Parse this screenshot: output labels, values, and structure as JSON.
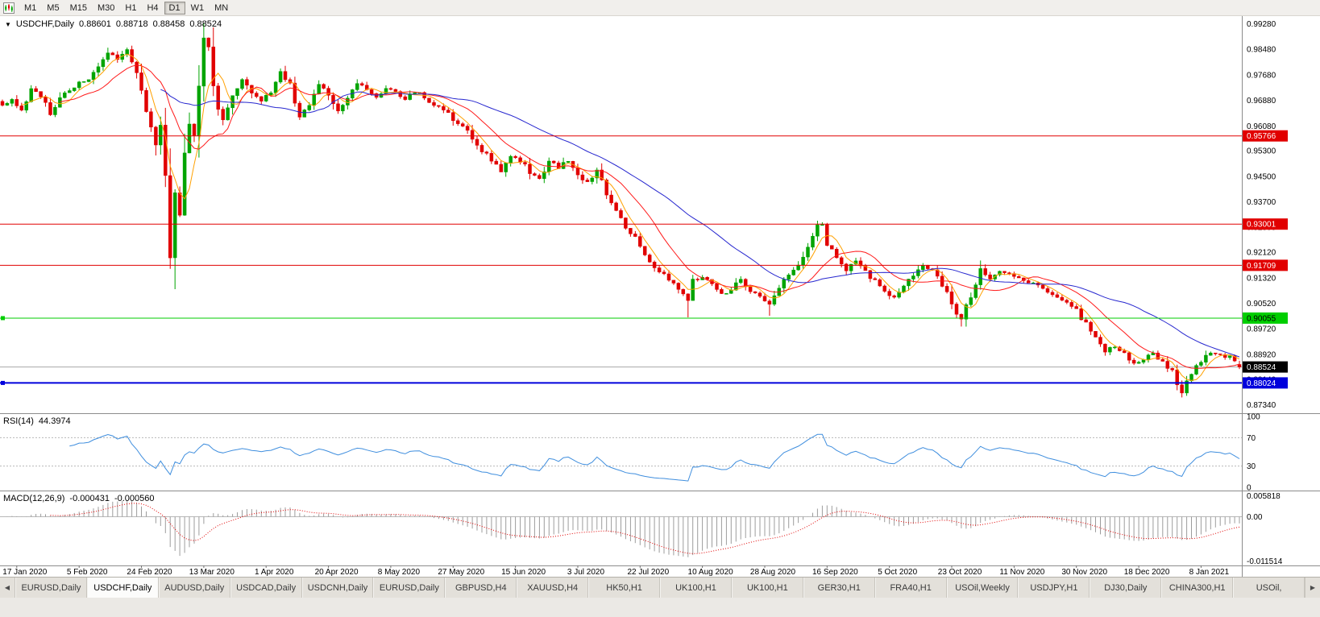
{
  "toolbar": {
    "timeframes": [
      {
        "label": "M1",
        "active": false
      },
      {
        "label": "M5",
        "active": false
      },
      {
        "label": "M15",
        "active": false
      },
      {
        "label": "M30",
        "active": false
      },
      {
        "label": "H1",
        "active": false
      },
      {
        "label": "H4",
        "active": false
      },
      {
        "label": "D1",
        "active": true
      },
      {
        "label": "W1",
        "active": false
      },
      {
        "label": "MN",
        "active": false
      }
    ]
  },
  "chart": {
    "title": {
      "arrow": "▼",
      "symbol": "USDCHF,Daily",
      "open": "0.88601",
      "high": "0.88718",
      "low": "0.88458",
      "close": "0.88524"
    },
    "rsi": {
      "name": "RSI(14)",
      "value": "44.3974"
    },
    "macd": {
      "name": "MACD(12,26,9)",
      "value1": "-0.000431",
      "value2": "-0.000560"
    }
  },
  "chart_data": {
    "type": "candlestick",
    "symbol": "USDCHF",
    "period": "Daily",
    "bars": 259,
    "seed": 20,
    "price_axis": [
      "0.99280",
      "0.98480",
      "0.97680",
      "0.96880",
      "0.96080",
      "0.95300",
      "0.94500",
      "0.93700",
      "0.92900",
      "0.92120",
      "0.91320",
      "0.90520",
      "0.89720",
      "0.88920",
      "0.88140",
      "0.87340"
    ],
    "price_range": {
      "min": 0.871,
      "max": 0.9952
    },
    "x_labels": [
      "17 Jan 2020",
      "5 Feb 2020",
      "24 Feb 2020",
      "13 Mar 2020",
      "1 Apr 2020",
      "20 Apr 2020",
      "8 May 2020",
      "27 May 2020",
      "15 Jun 2020",
      "3 Jul 2020",
      "22 Jul 2020",
      "10 Aug 2020",
      "28 Aug 2020",
      "16 Sep 2020",
      "5 Oct 2020",
      "23 Oct 2020",
      "11 Nov 2020",
      "30 Nov 2020",
      "18 Dec 2020",
      "8 Jan 2021"
    ],
    "x_label_first_bar": 3,
    "x_label_step": 13,
    "close_anchors": [
      [
        0,
        0.967
      ],
      [
        2,
        0.969
      ],
      [
        4,
        0.9658
      ],
      [
        6,
        0.9722
      ],
      [
        8,
        0.97
      ],
      [
        10,
        0.9645
      ],
      [
        12,
        0.97
      ],
      [
        14,
        0.9722
      ],
      [
        16,
        0.974
      ],
      [
        18,
        0.9758
      ],
      [
        20,
        0.98
      ],
      [
        22,
        0.9838
      ],
      [
        24,
        0.9812
      ],
      [
        26,
        0.9842
      ],
      [
        28,
        0.9782
      ],
      [
        30,
        0.966
      ],
      [
        31,
        0.9612
      ],
      [
        32,
        0.9548
      ],
      [
        33,
        0.9618
      ],
      [
        34,
        0.948
      ],
      [
        35,
        0.9205
      ],
      [
        36,
        0.9388
      ],
      [
        37,
        0.933
      ],
      [
        38,
        0.9505
      ],
      [
        39,
        0.9608
      ],
      [
        40,
        0.9565
      ],
      [
        41,
        0.973
      ],
      [
        42,
        0.988
      ],
      [
        43,
        0.9845
      ],
      [
        44,
        0.9745
      ],
      [
        45,
        0.9675
      ],
      [
        46,
        0.9628
      ],
      [
        48,
        0.9702
      ],
      [
        50,
        0.9758
      ],
      [
        52,
        0.9712
      ],
      [
        54,
        0.9682
      ],
      [
        56,
        0.9712
      ],
      [
        58,
        0.9775
      ],
      [
        60,
        0.9738
      ],
      [
        62,
        0.9642
      ],
      [
        64,
        0.9668
      ],
      [
        66,
        0.9738
      ],
      [
        68,
        0.97
      ],
      [
        70,
        0.9652
      ],
      [
        72,
        0.9688
      ],
      [
        74,
        0.9745
      ],
      [
        76,
        0.9725
      ],
      [
        78,
        0.97
      ],
      [
        80,
        0.9722
      ],
      [
        82,
        0.9712
      ],
      [
        84,
        0.9692
      ],
      [
        86,
        0.9715
      ],
      [
        88,
        0.97
      ],
      [
        90,
        0.9672
      ],
      [
        92,
        0.966
      ],
      [
        94,
        0.9625
      ],
      [
        96,
        0.9612
      ],
      [
        98,
        0.9565
      ],
      [
        100,
        0.953
      ],
      [
        102,
        0.95
      ],
      [
        104,
        0.9468
      ],
      [
        106,
        0.9515
      ],
      [
        108,
        0.95
      ],
      [
        110,
        0.9462
      ],
      [
        112,
        0.9445
      ],
      [
        114,
        0.95
      ],
      [
        116,
        0.9478
      ],
      [
        118,
        0.9502
      ],
      [
        120,
        0.9455
      ],
      [
        122,
        0.9432
      ],
      [
        124,
        0.9465
      ],
      [
        126,
        0.9395
      ],
      [
        128,
        0.9345
      ],
      [
        130,
        0.9295
      ],
      [
        132,
        0.9255
      ],
      [
        134,
        0.921
      ],
      [
        136,
        0.9162
      ],
      [
        138,
        0.9138
      ],
      [
        140,
        0.911
      ],
      [
        142,
        0.908
      ],
      [
        143,
        0.9065
      ],
      [
        144,
        0.912
      ],
      [
        146,
        0.9138
      ],
      [
        148,
        0.9115
      ],
      [
        150,
        0.9078
      ],
      [
        152,
        0.9098
      ],
      [
        154,
        0.9128
      ],
      [
        156,
        0.9092
      ],
      [
        158,
        0.9068
      ],
      [
        160,
        0.9045
      ],
      [
        162,
        0.9105
      ],
      [
        164,
        0.914
      ],
      [
        166,
        0.9172
      ],
      [
        168,
        0.9222
      ],
      [
        170,
        0.929
      ],
      [
        171,
        0.9298
      ],
      [
        172,
        0.924
      ],
      [
        174,
        0.9188
      ],
      [
        176,
        0.9158
      ],
      [
        178,
        0.9188
      ],
      [
        180,
        0.9152
      ],
      [
        182,
        0.912
      ],
      [
        184,
        0.9085
      ],
      [
        186,
        0.9068
      ],
      [
        188,
        0.9105
      ],
      [
        190,
        0.914
      ],
      [
        192,
        0.9168
      ],
      [
        194,
        0.9152
      ],
      [
        196,
        0.9108
      ],
      [
        198,
        0.9052
      ],
      [
        200,
        0.8998
      ],
      [
        202,
        0.9075
      ],
      [
        204,
        0.9165
      ],
      [
        206,
        0.9125
      ],
      [
        208,
        0.9148
      ],
      [
        210,
        0.9142
      ],
      [
        212,
        0.9128
      ],
      [
        214,
        0.9115
      ],
      [
        216,
        0.9108
      ],
      [
        218,
        0.9092
      ],
      [
        220,
        0.9072
      ],
      [
        222,
        0.906
      ],
      [
        224,
        0.9028
      ],
      [
        226,
        0.8985
      ],
      [
        228,
        0.894
      ],
      [
        230,
        0.8902
      ],
      [
        232,
        0.8918
      ],
      [
        234,
        0.8895
      ],
      [
        236,
        0.886
      ],
      [
        238,
        0.8878
      ],
      [
        240,
        0.8898
      ],
      [
        242,
        0.8868
      ],
      [
        244,
        0.8838
      ],
      [
        245,
        0.8795
      ],
      [
        246,
        0.8772
      ],
      [
        247,
        0.8815
      ],
      [
        249,
        0.8852
      ],
      [
        251,
        0.8885
      ],
      [
        253,
        0.8898
      ],
      [
        255,
        0.8878
      ],
      [
        256,
        0.8888
      ],
      [
        257,
        0.8868
      ],
      [
        258,
        0.88524
      ]
    ],
    "wick_overrides": [
      {
        "i": 22,
        "high": 0.9853
      },
      {
        "i": 26,
        "high": 0.9851
      },
      {
        "i": 35,
        "low": 0.9163
      },
      {
        "i": 42,
        "high": 0.9918
      },
      {
        "i": 143,
        "low": 0.9008
      },
      {
        "i": 160,
        "low": 0.9013
      },
      {
        "i": 171,
        "high": 0.9306
      },
      {
        "i": 200,
        "low": 0.8979
      },
      {
        "i": 204,
        "high": 0.9186
      },
      {
        "i": 246,
        "low": 0.8757
      }
    ],
    "last_candle": {
      "open": 0.88601,
      "high": 0.88718,
      "low": 0.88458,
      "close": 0.88524
    },
    "colors": {
      "bull": "#00a400",
      "bear": "#e10000",
      "axis_text": "#000000",
      "separator": "#8c8c8c"
    },
    "moving_averages": [
      {
        "period": 5,
        "color": "#ffa000"
      },
      {
        "period": 13,
        "color": "#ff1a1a"
      },
      {
        "period": 34,
        "color": "#2727cf"
      }
    ],
    "hlines": [
      {
        "price": 0.95766,
        "label": "0.95766",
        "color": "#e10000",
        "text_color": "#ffffff",
        "width": 1,
        "handle": false
      },
      {
        "price": 0.93001,
        "label": "0.93001",
        "color": "#e10000",
        "text_color": "#ffffff",
        "width": 1,
        "handle": false
      },
      {
        "price": 0.91709,
        "label": "0.91709",
        "color": "#e10000",
        "text_color": "#ffffff",
        "width": 1,
        "handle": false
      },
      {
        "price": 0.90055,
        "label": "0.90055",
        "color": "#00ce00",
        "text_color": "#000000",
        "width": 1,
        "handle": true
      },
      {
        "price": 0.88024,
        "label": "0.88024",
        "color": "#0000dc",
        "text_color": "#ffffff",
        "width": 2,
        "handle": true
      }
    ],
    "current_price": {
      "price": 0.88524,
      "label": "0.88524",
      "line_color": "#a8a8a8",
      "badge_bg": "#000000",
      "text_color": "#ffffff"
    },
    "rsi": {
      "period": 14,
      "color": "#3f8ede",
      "levels": [
        70,
        30
      ],
      "axis_labels": [
        "100",
        "70",
        "30",
        "0"
      ],
      "range": [
        0,
        100
      ]
    },
    "macd": {
      "fast": 12,
      "slow": 26,
      "signal": 9,
      "hist_color": "#9c9c9c",
      "signal_color": "#e10000",
      "axis_labels": [
        "0.005818",
        "0.00",
        "-0.011514"
      ],
      "range": {
        "max": 0.005818,
        "min": -0.011514
      }
    }
  },
  "tabs": {
    "left_arrow": "◀",
    "right_arrow": "▶",
    "items": [
      {
        "label": "EURUSD,Daily",
        "active": false
      },
      {
        "label": "USDCHF,Daily",
        "active": true
      },
      {
        "label": "AUDUSD,Daily",
        "active": false
      },
      {
        "label": "USDCAD,Daily",
        "active": false
      },
      {
        "label": "USDCNH,Daily",
        "active": false
      },
      {
        "label": "EURUSD,Daily",
        "active": false
      },
      {
        "label": "GBPUSD,H4",
        "active": false
      },
      {
        "label": "XAUUSD,H4",
        "active": false
      },
      {
        "label": "HK50,H1",
        "active": false
      },
      {
        "label": "UK100,H1",
        "active": false
      },
      {
        "label": "UK100,H1",
        "active": false
      },
      {
        "label": "GER30,H1",
        "active": false
      },
      {
        "label": "FRA40,H1",
        "active": false
      },
      {
        "label": "USOil,Weekly",
        "active": false
      },
      {
        "label": "USDJPY,H1",
        "active": false
      },
      {
        "label": "DJ30,Daily",
        "active": false
      },
      {
        "label": "CHINA300,H1",
        "active": false
      },
      {
        "label": "USOil,",
        "active": false
      }
    ]
  }
}
